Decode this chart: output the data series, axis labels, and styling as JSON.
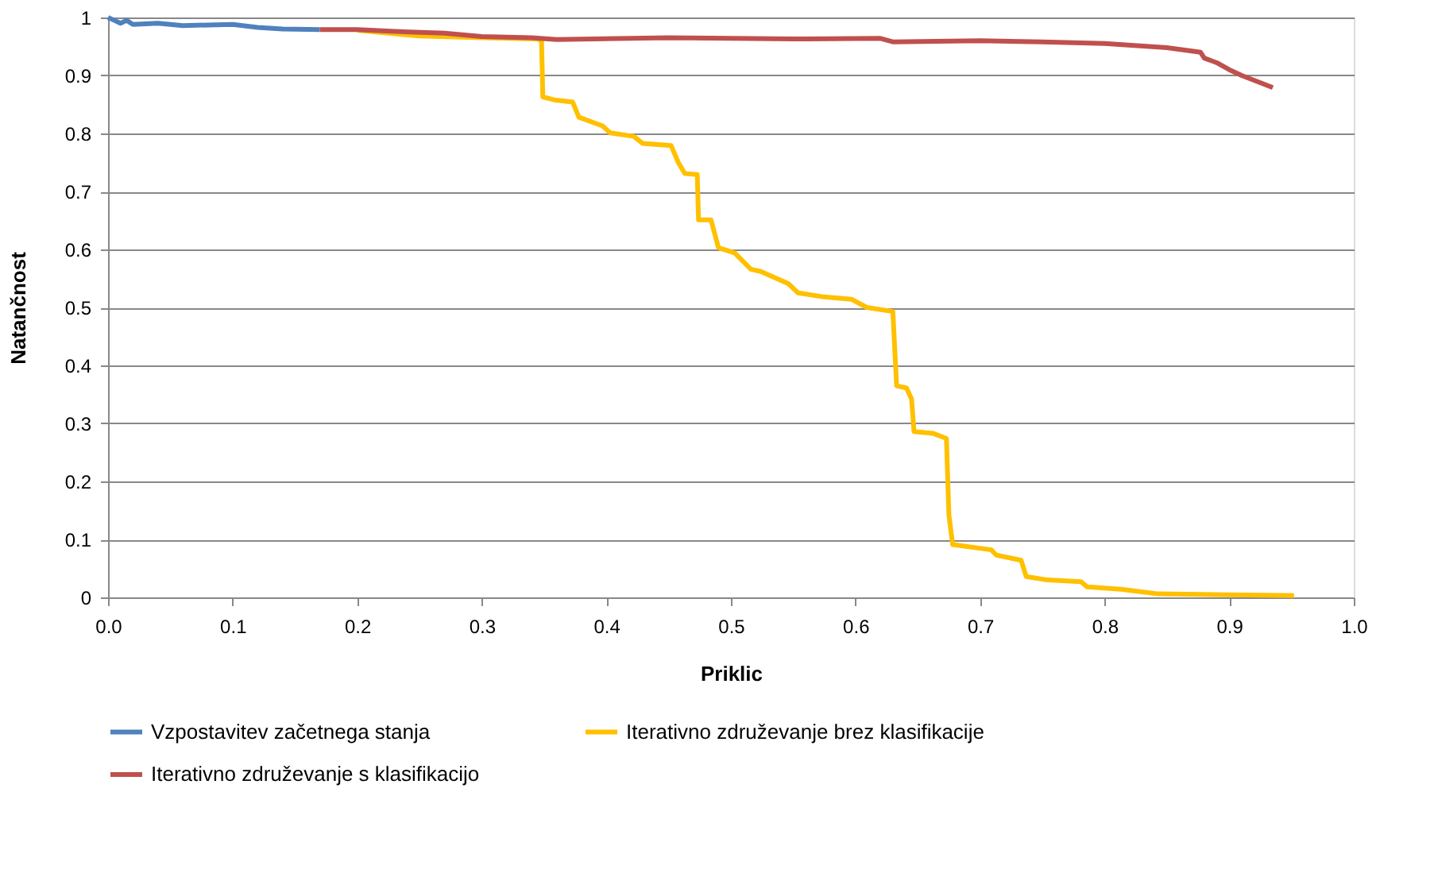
{
  "chart_data": {
    "type": "line",
    "xlabel": "Priklic",
    "ylabel": "Natančnost",
    "xlim": [
      0,
      1
    ],
    "ylim": [
      0,
      1
    ],
    "xticks": [
      {
        "value": 0,
        "label": "0.0"
      },
      0.1,
      0.2,
      0.3,
      0.4,
      0.5,
      0.6,
      0.7,
      0.8,
      0.9,
      {
        "value": 1,
        "label": "1.0"
      }
    ],
    "yticks": [
      0,
      0.1,
      0.2,
      0.3,
      0.4,
      0.5,
      0.6,
      0.7,
      0.8,
      0.9,
      1
    ],
    "grid": "y",
    "legend": "bottom",
    "marker": "none",
    "line_style": "solid",
    "series": [
      {
        "name": "Vzpostavitev začetnega stanja",
        "color": "#4f81bd",
        "x": [
          0,
          0.005,
          0.01,
          0.015,
          0.02,
          0.04,
          0.06,
          0.08,
          0.1,
          0.12,
          0.14,
          0.17
        ],
        "values": [
          1,
          0.995,
          0.99,
          0.995,
          0.988,
          0.99,
          0.986,
          0.987,
          0.988,
          0.983,
          0.98,
          0.979
        ]
      },
      {
        "name": "Iterativno združevanje brez klasifikacije",
        "color": "#ffc000",
        "x": [
          0.2,
          0.25,
          0.3,
          0.345,
          0.348,
          0.349,
          0.358,
          0.373,
          0.378,
          0.397,
          0.403,
          0.422,
          0.429,
          0.452,
          0.458,
          0.463,
          0.473,
          0.474,
          0.484,
          0.49,
          0.503,
          0.516,
          0.524,
          0.546,
          0.554,
          0.575,
          0.597,
          0.609,
          0.63,
          0.633,
          0.641,
          0.645,
          0.647,
          0.662,
          0.673,
          0.675,
          0.678,
          0.709,
          0.713,
          0.733,
          0.737,
          0.754,
          0.781,
          0.786,
          0.813,
          0.843,
          0.952
        ],
        "values": [
          0.978,
          0.968,
          0.965,
          0.963,
          0.959,
          0.863,
          0.858,
          0.854,
          0.828,
          0.813,
          0.801,
          0.795,
          0.783,
          0.779,
          0.749,
          0.731,
          0.729,
          0.651,
          0.651,
          0.603,
          0.594,
          0.566,
          0.562,
          0.541,
          0.525,
          0.518,
          0.514,
          0.5,
          0.493,
          0.365,
          0.361,
          0.342,
          0.286,
          0.283,
          0.274,
          0.142,
          0.091,
          0.082,
          0.073,
          0.064,
          0.036,
          0.03,
          0.027,
          0.018,
          0.014,
          0.006,
          0.003
        ]
      },
      {
        "name": "Iterativno združevanje s klasifikacijo",
        "color": "#c0504d",
        "x": [
          0.17,
          0.2,
          0.23,
          0.27,
          0.3,
          0.34,
          0.36,
          0.45,
          0.55,
          0.62,
          0.63,
          0.7,
          0.75,
          0.8,
          0.85,
          0.877,
          0.88,
          0.89,
          0.9,
          0.91,
          0.935
        ],
        "values": [
          0.979,
          0.979,
          0.976,
          0.973,
          0.967,
          0.965,
          0.962,
          0.965,
          0.963,
          0.964,
          0.958,
          0.96,
          0.958,
          0.955,
          0.948,
          0.94,
          0.93,
          0.922,
          0.91,
          0.9,
          0.879
        ]
      }
    ]
  }
}
